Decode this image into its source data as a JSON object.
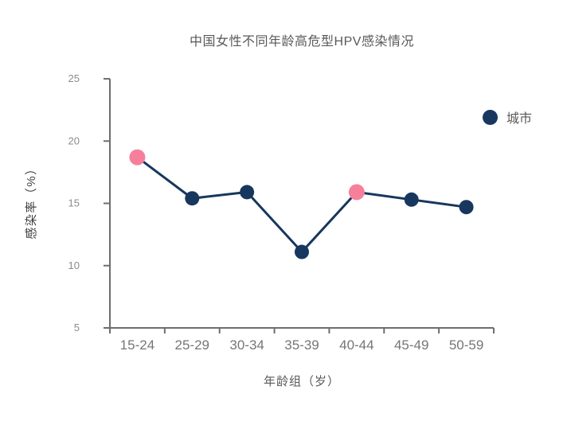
{
  "page": {
    "background": "#ffffff"
  },
  "chart_data": {
    "type": "line",
    "title": "中国女性不同年龄高危型HPV感染情况",
    "xlabel": "年龄组（岁）",
    "ylabel": "感染率（%）",
    "categories": [
      "15-24",
      "25-29",
      "30-34",
      "35-39",
      "40-44",
      "45-49",
      "50-59"
    ],
    "series": [
      {
        "name": "城市",
        "values": [
          18.7,
          15.4,
          15.9,
          11.1,
          15.9,
          15.3,
          14.7
        ]
      }
    ],
    "highlight_indices": [
      0,
      4
    ],
    "ylim": [
      5,
      25
    ],
    "yticks": [
      5,
      10,
      15,
      20,
      25
    ],
    "grid": false,
    "legend_position": "right",
    "colors": {
      "line": "#17375E",
      "marker": "#17375E",
      "highlight_marker": "#F6809C",
      "axis": "#6E6E6E",
      "tick_label": "#8C8C8C",
      "x_tick_label": "#767676",
      "title": "#595959",
      "axis_title": "#404040",
      "legend_text": "#595959"
    }
  }
}
